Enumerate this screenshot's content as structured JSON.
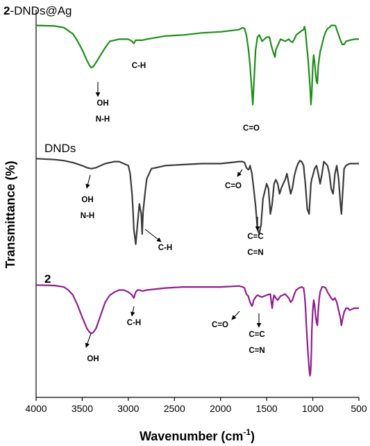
{
  "chart_data": {
    "type": "line",
    "title": "",
    "xlabel": "Wavenumber (cm",
    "xlabel_sup": "-1",
    "xlabel_close": ")",
    "ylabel": "Transmittance (%)",
    "x_reversed": true,
    "xlim": [
      4000,
      500
    ],
    "x_ticks": [
      4000,
      3500,
      3000,
      2500,
      2000,
      1500,
      1000,
      500
    ],
    "y_ticks": [],
    "grid": false,
    "legend": "none",
    "series": [
      {
        "name_bold": "2",
        "name_rest": "-DNDs@Ag",
        "color": "#1e8c1a",
        "x": [
          4000,
          3800,
          3700,
          3600,
          3550,
          3500,
          3450,
          3420,
          3400,
          3380,
          3350,
          3300,
          3250,
          3200,
          3100,
          3000,
          2960,
          2940,
          2920,
          2880,
          2850,
          2800,
          2600,
          2400,
          2200,
          2000,
          1800,
          1760,
          1740,
          1720,
          1700,
          1680,
          1660,
          1650,
          1640,
          1620,
          1600,
          1580,
          1550,
          1500,
          1470,
          1450,
          1430,
          1410,
          1400,
          1380,
          1350,
          1300,
          1260,
          1240,
          1220,
          1200,
          1180,
          1150,
          1120,
          1100,
          1090,
          1080,
          1070,
          1050,
          1030,
          1020,
          1010,
          1000,
          990,
          980,
          970,
          960,
          950,
          940,
          930,
          920,
          900,
          880,
          860,
          840,
          820,
          800,
          780,
          760,
          750,
          740,
          720,
          700,
          680,
          660,
          640,
          600,
          550,
          500
        ],
        "y": [
          93,
          92.5,
          91,
          85,
          78,
          70,
          60,
          55,
          53,
          54,
          58,
          65,
          72,
          78,
          80,
          80,
          78,
          76,
          79,
          79,
          79,
          80,
          83,
          84,
          86,
          87,
          89,
          91,
          90,
          84,
          72,
          55,
          30,
          18,
          35,
          70,
          82,
          84,
          78,
          82,
          82,
          74,
          68,
          63,
          70,
          74,
          80,
          78,
          80,
          78,
          77,
          80,
          84,
          86,
          88,
          89,
          92,
          88,
          78,
          60,
          35,
          18,
          30,
          55,
          65,
          58,
          48,
          40,
          38,
          55,
          62,
          68,
          75,
          82,
          87,
          90,
          91,
          93,
          93,
          93,
          92,
          89,
          84,
          79,
          75,
          75,
          78,
          79,
          80,
          80
        ]
      },
      {
        "name_bold": "",
        "name_rest": "DNDs",
        "color": "#3a3a3a",
        "x": [
          4000,
          3800,
          3700,
          3600,
          3500,
          3450,
          3400,
          3350,
          3300,
          3250,
          3200,
          3150,
          3100,
          3050,
          3000,
          2980,
          2960,
          2950,
          2940,
          2920,
          2900,
          2880,
          2870,
          2860,
          2850,
          2840,
          2820,
          2800,
          2750,
          2600,
          2400,
          2200,
          2000,
          1900,
          1800,
          1760,
          1740,
          1720,
          1700,
          1690,
          1680,
          1660,
          1640,
          1620,
          1600,
          1580,
          1560,
          1540,
          1500,
          1480,
          1460,
          1440,
          1420,
          1400,
          1380,
          1360,
          1340,
          1300,
          1280,
          1260,
          1240,
          1220,
          1200,
          1180,
          1160,
          1140,
          1120,
          1100,
          1080,
          1060,
          1040,
          1030,
          1020,
          1010,
          1000,
          980,
          960,
          940,
          920,
          900,
          880,
          860,
          840,
          820,
          800,
          780,
          760,
          740,
          720,
          700,
          690,
          680,
          660,
          640,
          600,
          550,
          500
        ],
        "y": [
          95,
          94,
          93,
          91,
          88,
          86,
          85,
          86,
          88,
          90,
          91,
          92,
          92,
          90,
          88,
          80,
          60,
          45,
          25,
          10,
          30,
          50,
          45,
          40,
          20,
          42,
          60,
          75,
          85,
          88,
          89,
          90,
          90,
          91,
          92,
          92,
          91,
          86,
          84,
          85,
          88,
          80,
          65,
          48,
          25,
          20,
          30,
          55,
          70,
          65,
          40,
          50,
          70,
          74,
          70,
          60,
          66,
          74,
          80,
          70,
          60,
          66,
          78,
          85,
          90,
          93,
          92,
          88,
          70,
          45,
          40,
          55,
          70,
          75,
          78,
          85,
          88,
          80,
          70,
          80,
          92,
          90,
          88,
          80,
          65,
          60,
          80,
          88,
          75,
          50,
          40,
          55,
          85,
          88,
          90,
          90,
          90
        ]
      },
      {
        "name_bold": "2",
        "name_rest": "",
        "color": "#8e1e8e",
        "x": [
          4000,
          3800,
          3700,
          3650,
          3600,
          3550,
          3500,
          3450,
          3420,
          3400,
          3380,
          3350,
          3300,
          3250,
          3200,
          3150,
          3100,
          3050,
          3000,
          2960,
          2940,
          2920,
          2900,
          2880,
          2850,
          2800,
          2600,
          2400,
          2200,
          2000,
          1800,
          1760,
          1740,
          1720,
          1700,
          1680,
          1660,
          1650,
          1640,
          1620,
          1600,
          1580,
          1550,
          1500,
          1460,
          1450,
          1440,
          1430,
          1420,
          1400,
          1380,
          1350,
          1300,
          1260,
          1240,
          1220,
          1200,
          1180,
          1150,
          1120,
          1100,
          1090,
          1080,
          1070,
          1050,
          1035,
          1030,
          1025,
          1020,
          1015,
          1010,
          1000,
          990,
          980,
          970,
          960,
          950,
          940,
          930,
          920,
          900,
          880,
          860,
          840,
          820,
          800,
          780,
          760,
          740,
          720,
          700,
          690,
          680,
          660,
          640,
          620,
          600,
          550,
          500
        ],
        "y": [
          95,
          94.5,
          93,
          90,
          85,
          75,
          63,
          52,
          48,
          47,
          48,
          52,
          65,
          78,
          85,
          88,
          90,
          90,
          88,
          85,
          82,
          88,
          90,
          90,
          89,
          90,
          92,
          93,
          93,
          93,
          94,
          93,
          92,
          86,
          84,
          78,
          74,
          76,
          80,
          83,
          85,
          84,
          83,
          85,
          86,
          78,
          72,
          80,
          85,
          82,
          80,
          84,
          86,
          82,
          78,
          80,
          86,
          90,
          92,
          93,
          92,
          86,
          75,
          55,
          25,
          8,
          5,
          8,
          15,
          30,
          50,
          70,
          80,
          75,
          65,
          58,
          55,
          70,
          82,
          88,
          93,
          93,
          92,
          88,
          85,
          82,
          80,
          82,
          78,
          70,
          62,
          55,
          60,
          68,
          72,
          72,
          70,
          72,
          72
        ]
      }
    ],
    "annotations": [
      {
        "series": 0,
        "lines": [
          "C-H"
        ],
        "arrow": false
      },
      {
        "series": 0,
        "lines": [
          "OH",
          "N-H"
        ],
        "arrow": true
      },
      {
        "series": 0,
        "lines": [
          "C=O"
        ],
        "arrow": false
      },
      {
        "series": 1,
        "lines": [
          "OH",
          "N-H"
        ],
        "arrow": true
      },
      {
        "series": 1,
        "lines": [
          "C-H"
        ],
        "arrow": true
      },
      {
        "series": 1,
        "lines": [
          "C=O"
        ],
        "arrow": true
      },
      {
        "series": 1,
        "lines": [
          "C=C",
          "C=N"
        ],
        "arrow": true
      },
      {
        "series": 2,
        "lines": [
          "C-H"
        ],
        "arrow": true
      },
      {
        "series": 2,
        "lines": [
          "OH"
        ],
        "arrow": true
      },
      {
        "series": 2,
        "lines": [
          "C=O"
        ],
        "arrow": true
      },
      {
        "series": 2,
        "lines": [
          "C=C",
          "C=N"
        ],
        "arrow": true
      }
    ]
  }
}
